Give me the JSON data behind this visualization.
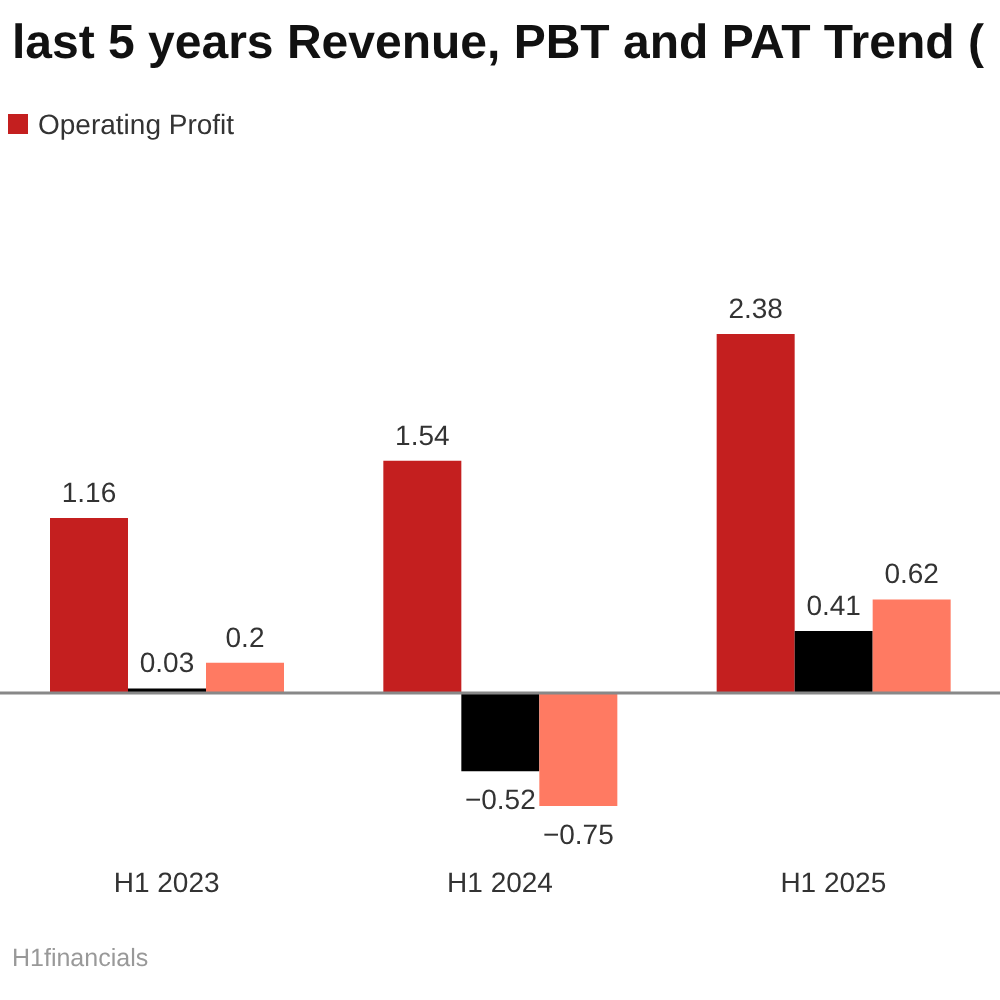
{
  "chart_data": {
    "type": "bar",
    "title": "last 5 years Revenue, PBT and PAT Trend (",
    "categories": [
      "H1 2023",
      "H1 2024",
      "H1 2025"
    ],
    "series": [
      {
        "name": "Operating Profit",
        "color": "#c41f1f",
        "values": [
          1.16,
          1.54,
          2.38
        ]
      },
      {
        "color": "#000000",
        "values": [
          0.03,
          -0.52,
          0.41
        ]
      },
      {
        "color": "#ff7a62",
        "values": [
          0.2,
          -0.75,
          0.62
        ]
      }
    ],
    "data_labels": true,
    "legend": "top left",
    "annotations": [
      "H1financials"
    ]
  }
}
